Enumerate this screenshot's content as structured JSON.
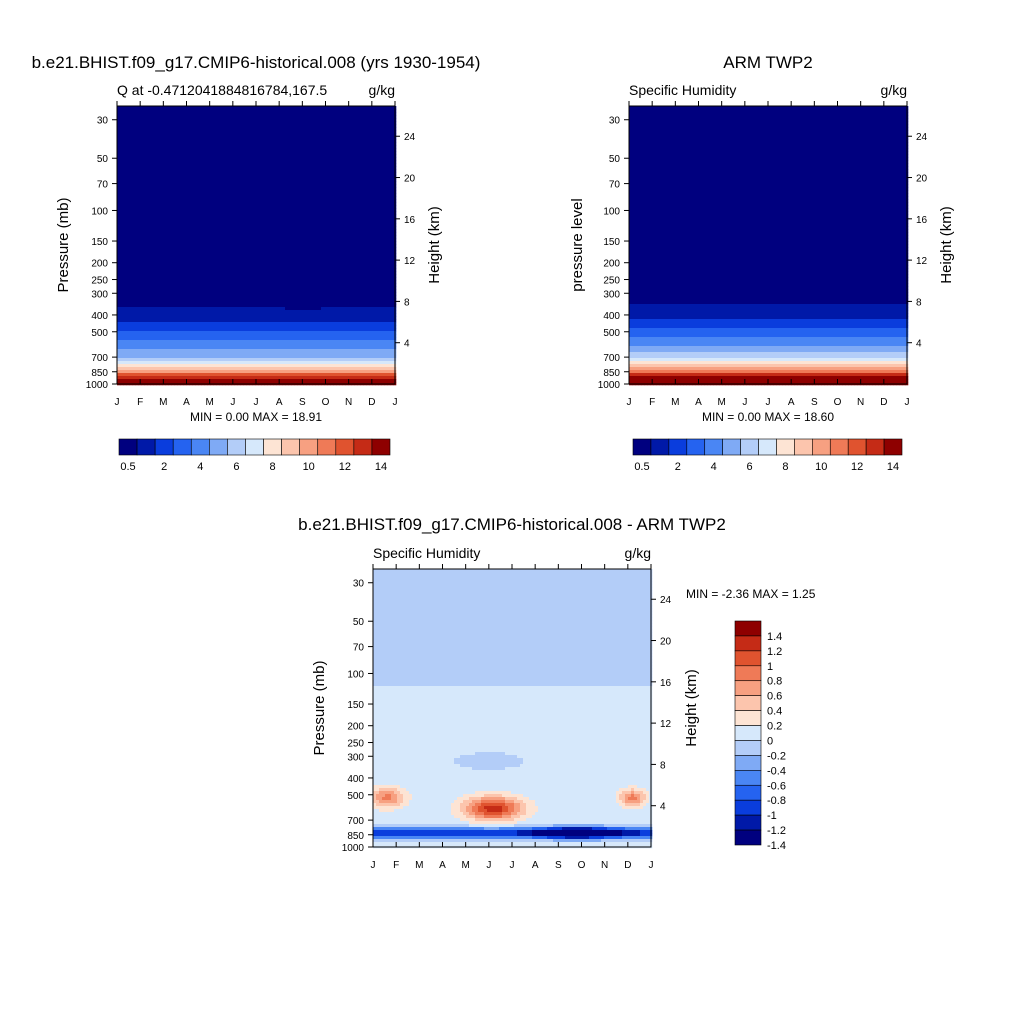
{
  "colors": {
    "humidity_scale": [
      "#00007f",
      "#0019a8",
      "#0a3ddd",
      "#2563f0",
      "#4a86f4",
      "#7faaf5",
      "#b3cdf8",
      "#d6e8fb",
      "#fde4d4",
      "#fcc5ad",
      "#f7a081",
      "#ef7a57",
      "#e0532f",
      "#c52b16",
      "#8e0000"
    ],
    "diff_scale": [
      "#00007f",
      "#0019a8",
      "#0a3ddd",
      "#2563f0",
      "#4a86f4",
      "#7faaf5",
      "#b3cdf8",
      "#d6e8fb",
      "#fde4d4",
      "#fcc5ad",
      "#f7a081",
      "#ef7a57",
      "#e0532f",
      "#c52b16",
      "#8e0000"
    ]
  },
  "panels": [
    {
      "title": "b.e21.BHIST.f09_g17.CMIP6-historical.008 (yrs 1930-1954)",
      "subtitle_left": "Q at -0.4712041884816784,167.5",
      "subtitle_right": "g/kg",
      "ylabel": "Pressure (mb)",
      "ylabel_right": "Height (km)",
      "minmax": "MIN =   0.00 MAX =   18.91",
      "colorbar_labels": [
        "0.5",
        "2",
        "4",
        "6",
        "8",
        "10",
        "12",
        "14"
      ]
    },
    {
      "title": "ARM TWP2",
      "subtitle_left": "Specific Humidity",
      "subtitle_right": "g/kg",
      "ylabel": "pressure level",
      "ylabel_right": "Height (km)",
      "minmax": "MIN =   0.00 MAX =   18.60",
      "colorbar_labels": [
        "0.5",
        "2",
        "4",
        "6",
        "8",
        "10",
        "12",
        "14"
      ]
    },
    {
      "title": "b.e21.BHIST.f09_g17.CMIP6-historical.008 - ARM TWP2",
      "subtitle_left": "Specific Humidity",
      "subtitle_right": "g/kg",
      "ylabel": "Pressure (mb)",
      "ylabel_right": "Height (km)",
      "minmax": "MIN =  -2.36 MAX =    1.25",
      "colorbar_labels": [
        "1.4",
        "1.2",
        "1",
        "0.8",
        "0.6",
        "0.4",
        "0.2",
        "0",
        "-0.2",
        "-0.4",
        "-0.6",
        "-0.8",
        "-1",
        "-1.2",
        "-1.4"
      ]
    }
  ],
  "chart_data": [
    {
      "type": "heatmap",
      "title": "b.e21.BHIST.f09_g17.CMIP6-historical.008 (yrs 1930-1954)",
      "x_ticks": [
        "J",
        "F",
        "M",
        "A",
        "M",
        "J",
        "J",
        "A",
        "S",
        "O",
        "N",
        "D",
        "J"
      ],
      "y_ticks_pressure": [
        30,
        50,
        70,
        100,
        150,
        200,
        250,
        300,
        400,
        500,
        700,
        850,
        1000
      ],
      "y_ticks_height": [
        24,
        20,
        16,
        12,
        8,
        4
      ],
      "ylim": [
        1000,
        25
      ],
      "value_range": [
        0.0,
        18.91
      ],
      "levels": [
        0.5,
        1,
        2,
        3,
        4,
        5,
        6,
        7,
        8,
        9,
        10,
        11,
        12,
        13,
        14
      ],
      "profile_pressure": [
        25,
        100,
        200,
        300,
        400,
        500,
        600,
        700,
        800,
        850,
        900,
        950,
        1000
      ],
      "profile_q": [
        0,
        0,
        0.1,
        0.4,
        1.5,
        3,
        4.5,
        6,
        9,
        11,
        13,
        15,
        16
      ],
      "seasonal_moist_layer_top_mb": [
        300,
        305,
        310,
        320,
        330,
        340,
        350,
        365,
        375,
        365,
        345,
        320,
        300
      ]
    },
    {
      "type": "heatmap",
      "title": "ARM TWP2",
      "x_ticks": [
        "J",
        "F",
        "M",
        "A",
        "M",
        "J",
        "J",
        "A",
        "S",
        "O",
        "N",
        "D",
        "J"
      ],
      "y_ticks_pressure": [
        30,
        50,
        70,
        100,
        150,
        200,
        250,
        300,
        400,
        500,
        700,
        850,
        1000
      ],
      "y_ticks_height": [
        24,
        20,
        16,
        12,
        8,
        4
      ],
      "ylim": [
        1000,
        25
      ],
      "value_range": [
        0.0,
        18.6
      ],
      "levels": [
        0.5,
        1,
        2,
        3,
        4,
        5,
        6,
        7,
        8,
        9,
        10,
        11,
        12,
        13,
        14
      ],
      "profile_pressure": [
        25,
        100,
        200,
        300,
        400,
        500,
        600,
        700,
        800,
        850,
        900,
        950,
        1000
      ],
      "profile_q": [
        0,
        0,
        0.1,
        0.5,
        1.7,
        3.4,
        5,
        7,
        10,
        12,
        14,
        16,
        17
      ],
      "seasonal_moist_layer_top_mb": [
        310,
        312,
        315,
        318,
        320,
        322,
        325,
        330,
        335,
        330,
        325,
        318,
        310
      ]
    },
    {
      "type": "heatmap",
      "title": "b.e21.BHIST.f09_g17.CMIP6-historical.008 - ARM TWP2",
      "x_ticks": [
        "J",
        "F",
        "M",
        "A",
        "M",
        "J",
        "J",
        "A",
        "S",
        "O",
        "N",
        "D",
        "J"
      ],
      "y_ticks_pressure": [
        30,
        50,
        70,
        100,
        150,
        200,
        250,
        300,
        400,
        500,
        700,
        850,
        1000
      ],
      "y_ticks_height": [
        24,
        20,
        16,
        12,
        8,
        4
      ],
      "ylim": [
        1000,
        25
      ],
      "value_range": [
        -2.36,
        1.25
      ],
      "levels": [
        -1.4,
        -1.2,
        -1,
        -0.8,
        -0.6,
        -0.4,
        -0.2,
        0,
        0.2,
        0.4,
        0.6,
        0.8,
        1,
        1.2,
        1.4
      ],
      "features": [
        {
          "desc": "upper layer above 120 mb",
          "value": -0.05
        },
        {
          "desc": "layer 120-1000 mb background",
          "value": 0.05
        },
        {
          "desc": "mid-year moist anomaly near 600 mb (May-Jul)",
          "value": 1.25
        },
        {
          "desc": "winter moist anomaly near 500 mb (Jan-Feb, Dec)",
          "value": 0.8
        },
        {
          "desc": "dry anomaly near 850 mb (Sep-Oct)",
          "value": -2.36
        }
      ]
    }
  ]
}
